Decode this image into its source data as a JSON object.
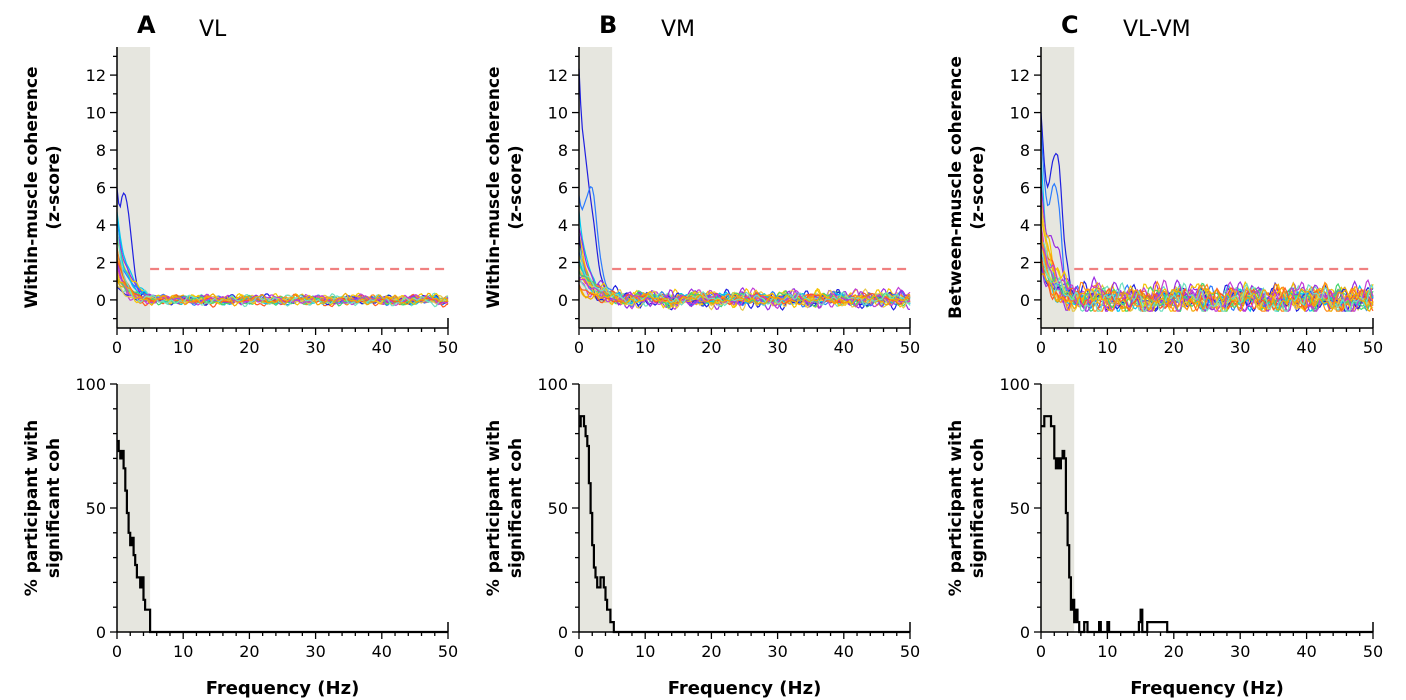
{
  "colors": {
    "shade": "#e6e6df",
    "threshold": "#f08080",
    "axis": "#000000",
    "pct_line": "#000000",
    "traces": [
      "#1f1fe0",
      "#2b7bff",
      "#00c8f0",
      "#9a2be2",
      "#f5c400",
      "#ff8c1a",
      "#e6c84a",
      "#46d66e",
      "#ff5a1f",
      "#c23bd6",
      "#6fe0c0",
      "#f2a900"
    ]
  },
  "chart_data": [
    {
      "type": "line",
      "panel_letter": "A",
      "title": "VL",
      "ylabel": [
        "Within-muscle coherence",
        "(z-score)"
      ],
      "xlabel": "",
      "xlim": [
        0,
        50
      ],
      "ylim": [
        -1.5,
        13.5
      ],
      "yticks": [
        0,
        2,
        4,
        6,
        8,
        10,
        12
      ],
      "xticks": [
        0,
        10,
        20,
        30,
        40,
        50
      ],
      "shaded_band": [
        0,
        5
      ],
      "threshold": 1.65,
      "n_series": 24,
      "series_peaks": [
        5.8,
        4.2,
        4.7,
        3.6,
        3.1,
        2.7,
        2.3,
        2.0,
        1.8,
        1.5,
        1.2,
        1.0,
        0.8,
        2.5,
        3.4,
        1.9,
        1.4,
        2.8,
        0.9,
        1.1,
        2.1,
        1.6,
        3.8,
        1.3
      ],
      "series_bumps": [
        [
          1.4,
          3.7
        ],
        null,
        null,
        null,
        null,
        null,
        null,
        null,
        null,
        null,
        null,
        null,
        null,
        null,
        null,
        null,
        null,
        null,
        null,
        null,
        null,
        null,
        null,
        null
      ],
      "series_baseline": 0.0,
      "series_noise": 0.12,
      "seed": 11
    },
    {
      "type": "line",
      "panel_letter": "B",
      "title": "VM",
      "ylabel": [
        "Within-muscle coherence",
        "(z-score)"
      ],
      "xlabel": "",
      "xlim": [
        0,
        50
      ],
      "ylim": [
        -1.5,
        13.5
      ],
      "yticks": [
        0,
        2,
        4,
        6,
        8,
        10,
        12
      ],
      "xticks": [
        0,
        10,
        20,
        30,
        40,
        50
      ],
      "shaded_band": [
        0,
        5
      ],
      "threshold": 1.65,
      "n_series": 24,
      "series_peaks": [
        12.3,
        5.5,
        4.6,
        4.1,
        3.3,
        2.8,
        2.4,
        2.0,
        1.7,
        1.4,
        1.2,
        0.9,
        3.6,
        2.6,
        1.9,
        1.5,
        1.1,
        3.0,
        2.2,
        1.8,
        0.8,
        1.3,
        2.9,
        0.6
      ],
      "series_bumps": [
        [
          1.8,
          2.5
        ],
        [
          2.0,
          4.2
        ],
        null,
        null,
        null,
        null,
        null,
        null,
        null,
        null,
        null,
        null,
        null,
        null,
        null,
        null,
        null,
        null,
        null,
        null,
        null,
        null,
        null,
        null
      ],
      "series_baseline": 0.05,
      "series_noise": 0.2,
      "seed": 29
    },
    {
      "type": "line",
      "panel_letter": "C",
      "title": "VL-VM",
      "ylabel": [
        "Between-muscle coherence",
        "(z-score)"
      ],
      "xlabel": "",
      "xlim": [
        0,
        50
      ],
      "ylim": [
        -1.5,
        13.5
      ],
      "yticks": [
        0,
        2,
        4,
        6,
        8,
        10,
        12
      ],
      "xticks": [
        0,
        10,
        20,
        30,
        40,
        50
      ],
      "shaded_band": [
        0,
        5
      ],
      "threshold": 1.65,
      "n_series": 24,
      "series_peaks": [
        9.7,
        8.9,
        7.2,
        6.4,
        5.6,
        5.3,
        4.9,
        4.4,
        3.9,
        3.5,
        3.1,
        2.7,
        2.4,
        2.1,
        1.8,
        1.5,
        4.6,
        3.3,
        2.9,
        2.2,
        1.7,
        3.7,
        2.5,
        1.2
      ],
      "series_bumps": [
        [
          2.5,
          6.2
        ],
        [
          2.2,
          5.3
        ],
        null,
        null,
        null,
        null,
        null,
        null,
        null,
        null,
        null,
        null,
        null,
        null,
        null,
        null,
        null,
        null,
        null,
        null,
        null,
        null,
        null,
        null
      ],
      "series_baseline": 0.05,
      "series_noise": 0.35,
      "seed": 47
    },
    {
      "type": "line",
      "panel_letter": "",
      "title": "",
      "ylabel": [
        "% participant with",
        "significant coh"
      ],
      "xlabel": "Frequency (Hz)",
      "xlim": [
        0,
        50
      ],
      "ylim": [
        0,
        100
      ],
      "yticks": [
        0,
        50,
        100
      ],
      "xticks": [
        0,
        10,
        20,
        30,
        40,
        50
      ],
      "shaded_band": [
        0,
        5
      ],
      "step": true,
      "x": [
        0,
        0.25,
        0.5,
        0.75,
        1.0,
        1.25,
        1.5,
        1.75,
        2.0,
        2.25,
        2.5,
        2.75,
        3.0,
        3.25,
        3.5,
        3.75,
        4.0,
        4.25,
        4.5,
        4.75,
        5.0,
        50
      ],
      "y": [
        77,
        73,
        70,
        73,
        66,
        57,
        48,
        40,
        35,
        38,
        31,
        27,
        22,
        22,
        18,
        22,
        13,
        9,
        9,
        9,
        0,
        0
      ]
    },
    {
      "type": "line",
      "panel_letter": "",
      "title": "",
      "ylabel": [
        "% participant with",
        "significant coh"
      ],
      "xlabel": "Frequency (Hz)",
      "xlim": [
        0,
        50
      ],
      "ylim": [
        0,
        100
      ],
      "yticks": [
        0,
        50,
        100
      ],
      "xticks": [
        0,
        10,
        20,
        30,
        40,
        50
      ],
      "shaded_band": [
        0,
        5
      ],
      "step": true,
      "x": [
        0,
        0.25,
        0.5,
        0.75,
        1.0,
        1.25,
        1.5,
        1.75,
        2.0,
        2.25,
        2.5,
        2.75,
        3.0,
        3.25,
        3.5,
        3.75,
        4.0,
        4.25,
        4.5,
        4.75,
        5.0,
        5.25,
        50
      ],
      "y": [
        83,
        87,
        87,
        83,
        79,
        75,
        60,
        48,
        35,
        26,
        22,
        18,
        18,
        22,
        22,
        18,
        13,
        9,
        9,
        4,
        4,
        0,
        0
      ]
    },
    {
      "type": "line",
      "panel_letter": "",
      "title": "",
      "ylabel": [
        "% participant with",
        "significant coh"
      ],
      "xlabel": "Frequency (Hz)",
      "xlim": [
        0,
        50
      ],
      "ylim": [
        0,
        100
      ],
      "yticks": [
        0,
        50,
        100
      ],
      "xticks": [
        0,
        10,
        20,
        30,
        40,
        50
      ],
      "shaded_band": [
        0,
        5
      ],
      "step": true,
      "x": [
        0,
        0.5,
        1.0,
        1.5,
        2.0,
        2.25,
        2.5,
        2.75,
        3.0,
        3.25,
        3.5,
        3.75,
        4.0,
        4.25,
        4.5,
        4.75,
        5.0,
        5.25,
        5.5,
        5.75,
        6.0,
        6.5,
        7.0,
        8.5,
        8.75,
        9.0,
        9.5,
        10.0,
        10.25,
        10.5,
        11.0,
        14.5,
        14.75,
        15.0,
        15.25,
        15.5,
        16.0,
        16.5,
        18.5,
        19.0,
        50
      ],
      "y": [
        83,
        87,
        87,
        83,
        70,
        66,
        70,
        66,
        70,
        73,
        70,
        48,
        35,
        22,
        9,
        13,
        4,
        9,
        4,
        0,
        0,
        4,
        0,
        0,
        4,
        0,
        0,
        4,
        0,
        0,
        0,
        0,
        4,
        9,
        0,
        0,
        4,
        4,
        4,
        0,
        0
      ]
    }
  ]
}
